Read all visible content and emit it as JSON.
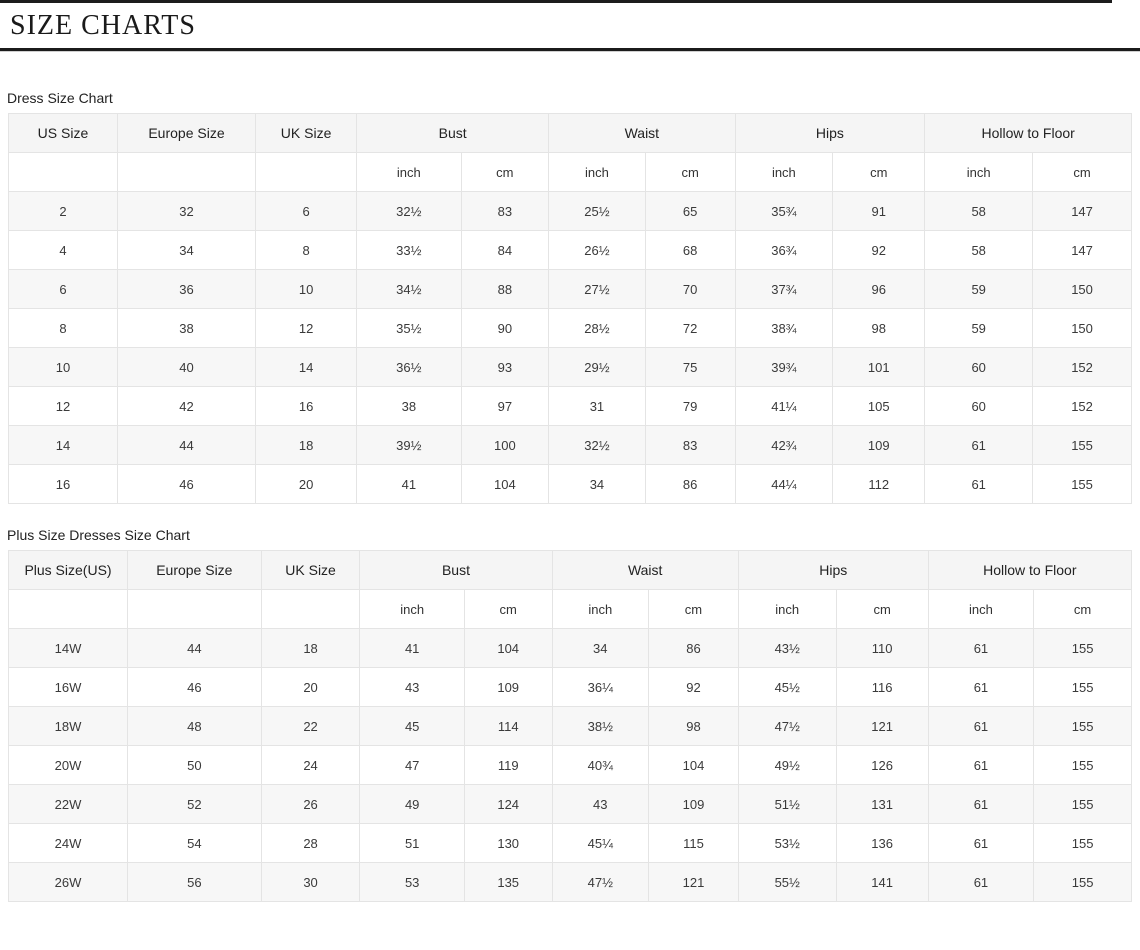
{
  "page": {
    "title": "SIZE CHARTS"
  },
  "dress_chart": {
    "label": "Dress Size Chart",
    "headers": {
      "size": "US Size",
      "europe": "Europe Size",
      "uk": "UK Size",
      "bust": "Bust",
      "waist": "Waist",
      "hips": "Hips",
      "hollow": "Hollow to Floor",
      "inch": "inch",
      "cm": "cm"
    },
    "rows": [
      [
        "2",
        "32",
        "6",
        "32½",
        "83",
        "25½",
        "65",
        "35¾",
        "91",
        "58",
        "147"
      ],
      [
        "4",
        "34",
        "8",
        "33½",
        "84",
        "26½",
        "68",
        "36¾",
        "92",
        "58",
        "147"
      ],
      [
        "6",
        "36",
        "10",
        "34½",
        "88",
        "27½",
        "70",
        "37¾",
        "96",
        "59",
        "150"
      ],
      [
        "8",
        "38",
        "12",
        "35½",
        "90",
        "28½",
        "72",
        "38¾",
        "98",
        "59",
        "150"
      ],
      [
        "10",
        "40",
        "14",
        "36½",
        "93",
        "29½",
        "75",
        "39¾",
        "101",
        "60",
        "152"
      ],
      [
        "12",
        "42",
        "16",
        "38",
        "97",
        "31",
        "79",
        "41¼",
        "105",
        "60",
        "152"
      ],
      [
        "14",
        "44",
        "18",
        "39½",
        "100",
        "32½",
        "83",
        "42¾",
        "109",
        "61",
        "155"
      ],
      [
        "16",
        "46",
        "20",
        "41",
        "104",
        "34",
        "86",
        "44¼",
        "112",
        "61",
        "155"
      ]
    ]
  },
  "plus_chart": {
    "label": "Plus Size Dresses Size Chart",
    "headers": {
      "size": "Plus Size(US)",
      "europe": "Europe Size",
      "uk": "UK Size",
      "bust": "Bust",
      "waist": "Waist",
      "hips": "Hips",
      "hollow": "Hollow to Floor",
      "inch": "inch",
      "cm": "cm"
    },
    "rows": [
      [
        "14W",
        "44",
        "18",
        "41",
        "104",
        "34",
        "86",
        "43½",
        "110",
        "61",
        "155"
      ],
      [
        "16W",
        "46",
        "20",
        "43",
        "109",
        "36¼",
        "92",
        "45½",
        "116",
        "61",
        "155"
      ],
      [
        "18W",
        "48",
        "22",
        "45",
        "114",
        "38½",
        "98",
        "47½",
        "121",
        "61",
        "155"
      ],
      [
        "20W",
        "50",
        "24",
        "47",
        "119",
        "40¾",
        "104",
        "49½",
        "126",
        "61",
        "155"
      ],
      [
        "22W",
        "52",
        "26",
        "49",
        "124",
        "43",
        "109",
        "51½",
        "131",
        "61",
        "155"
      ],
      [
        "24W",
        "54",
        "28",
        "51",
        "130",
        "45¼",
        "115",
        "53½",
        "136",
        "61",
        "155"
      ],
      [
        "26W",
        "56",
        "30",
        "53",
        "135",
        "47½",
        "121",
        "55½",
        "141",
        "61",
        "155"
      ]
    ]
  }
}
